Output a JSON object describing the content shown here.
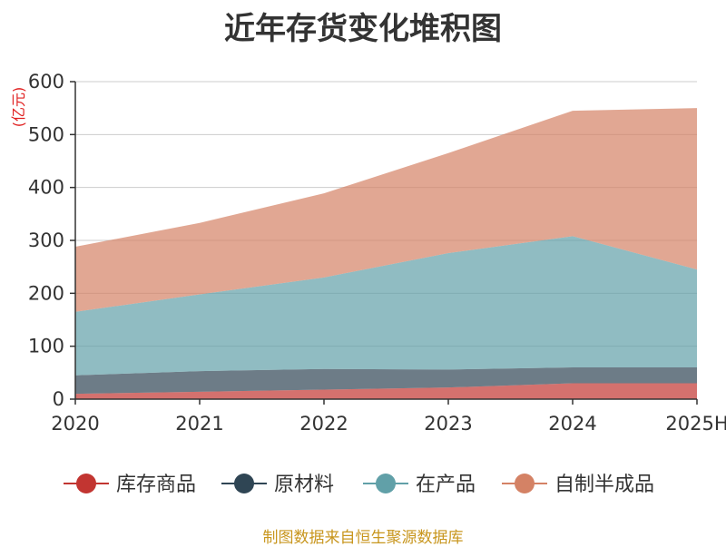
{
  "chart_data": {
    "type": "area",
    "title": "近年存货变化堆积图",
    "ylabel": "(亿元)",
    "xlabel": "",
    "categories": [
      "2020",
      "2021",
      "2022",
      "2023",
      "2024",
      "2025H"
    ],
    "ylim": [
      0,
      600
    ],
    "yticks": [
      0,
      100,
      200,
      300,
      400,
      500,
      600
    ],
    "stacked": true,
    "grid": true,
    "legend_position": "bottom",
    "series": [
      {
        "name": "库存商品",
        "color": "#c23531",
        "values": [
          10,
          14,
          18,
          22,
          30,
          30
        ]
      },
      {
        "name": "原材料",
        "color": "#2f4554",
        "values": [
          35,
          39,
          39,
          34,
          30,
          30
        ]
      },
      {
        "name": "在产品",
        "color": "#61a0a8",
        "values": [
          120,
          145,
          173,
          220,
          248,
          185
        ]
      },
      {
        "name": "自制半成品",
        "color": "#d48265",
        "values": [
          123,
          135,
          159,
          189,
          237,
          305
        ]
      }
    ]
  },
  "source_note": "制图数据来自恒生聚源数据库"
}
